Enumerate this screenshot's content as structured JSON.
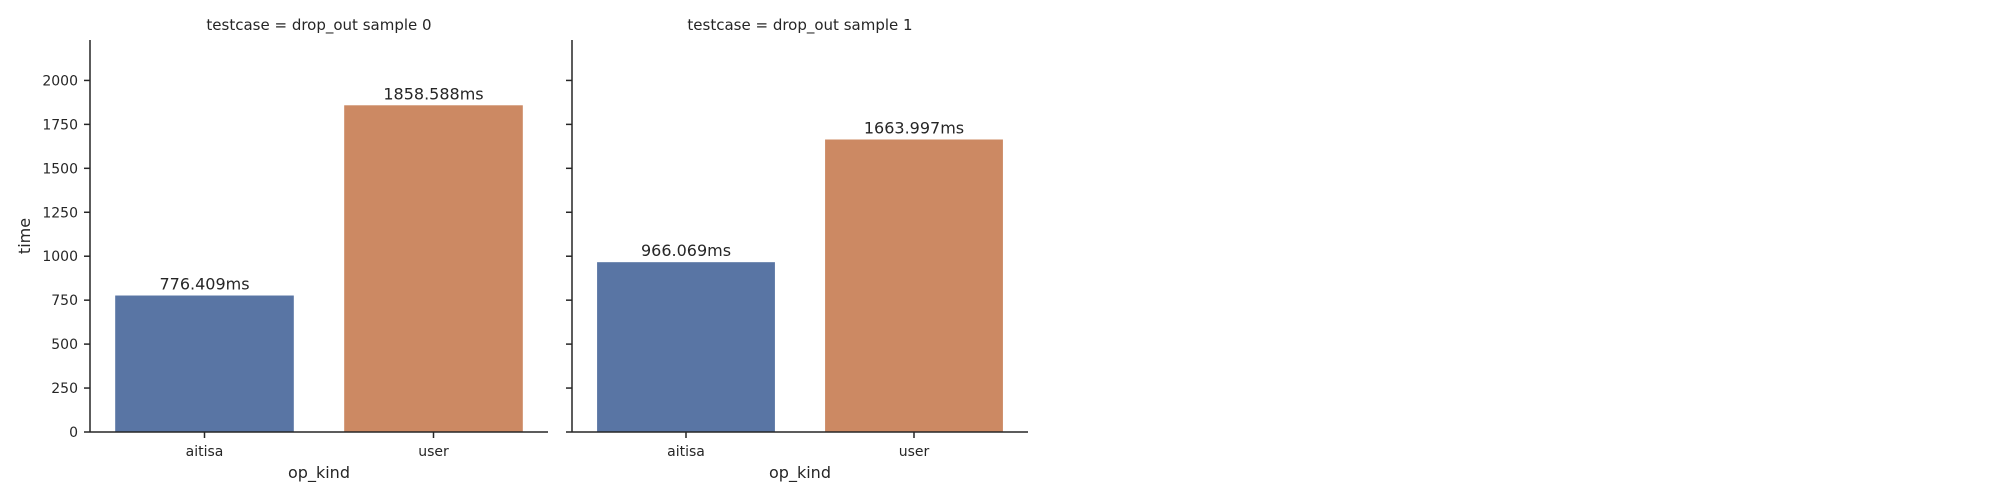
{
  "chart_data": {
    "type": "bar",
    "ylabel": "time",
    "xlabel": "op_kind",
    "ylim": [
      0,
      2230
    ],
    "yticks": [
      0,
      250,
      500,
      750,
      1000,
      1250,
      1500,
      1750,
      2000
    ],
    "categories": [
      "aitisa",
      "user"
    ],
    "bar_colors": [
      "#5975a4",
      "#cc8963"
    ],
    "grid": false,
    "facets": [
      {
        "title": "testcase = drop_out sample 0",
        "values": [
          776.409,
          1858.588
        ],
        "labels": [
          "776.409ms",
          "1858.588ms"
        ]
      },
      {
        "title": "testcase = drop_out sample 1",
        "values": [
          966.069,
          1663.997
        ],
        "labels": [
          "966.069ms",
          "1663.997ms"
        ]
      }
    ]
  }
}
